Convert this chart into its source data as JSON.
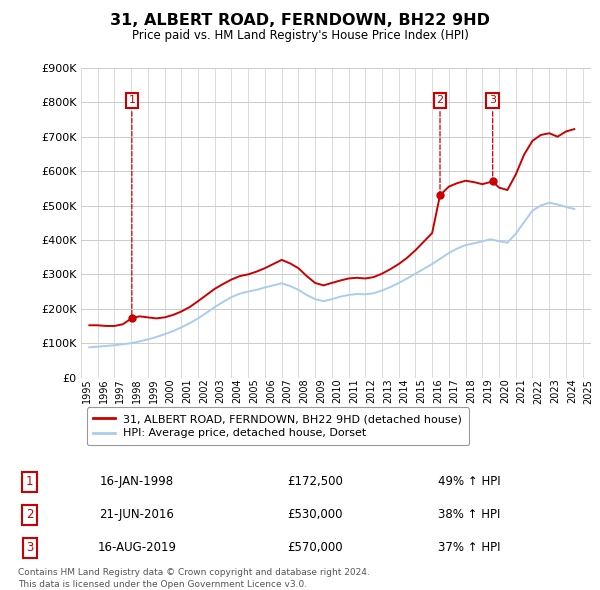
{
  "title": "31, ALBERT ROAD, FERNDOWN, BH22 9HD",
  "subtitle": "Price paid vs. HM Land Registry's House Price Index (HPI)",
  "legend_line1": "31, ALBERT ROAD, FERNDOWN, BH22 9HD (detached house)",
  "legend_line2": "HPI: Average price, detached house, Dorset",
  "footnote1": "Contains HM Land Registry data © Crown copyright and database right 2024.",
  "footnote2": "This data is licensed under the Open Government Licence v3.0.",
  "sale_color": "#cc0000",
  "hpi_color": "#aaccee",
  "background_color": "#ffffff",
  "grid_color": "#cccccc",
  "ylim": [
    0,
    900000
  ],
  "yticks": [
    0,
    100000,
    200000,
    300000,
    400000,
    500000,
    600000,
    700000,
    800000,
    900000
  ],
  "sales": [
    {
      "date_idx": 1998.04,
      "price": 172500,
      "label": "1"
    },
    {
      "date_idx": 2016.47,
      "price": 530000,
      "label": "2"
    },
    {
      "date_idx": 2019.62,
      "price": 570000,
      "label": "3"
    }
  ],
  "table_rows": [
    {
      "num": "1",
      "date": "16-JAN-1998",
      "price": "£172,500",
      "hpi": "49% ↑ HPI"
    },
    {
      "num": "2",
      "date": "21-JUN-2016",
      "price": "£530,000",
      "hpi": "38% ↑ HPI"
    },
    {
      "num": "3",
      "date": "16-AUG-2019",
      "price": "£570,000",
      "hpi": "37% ↑ HPI"
    }
  ],
  "red_line_x": [
    1995.5,
    1996.0,
    1996.5,
    1997.0,
    1997.5,
    1998.04,
    1998.5,
    1999.0,
    1999.5,
    2000.0,
    2000.5,
    2001.0,
    2001.5,
    2002.0,
    2002.5,
    2003.0,
    2003.5,
    2004.0,
    2004.5,
    2005.0,
    2005.5,
    2006.0,
    2006.5,
    2007.0,
    2007.5,
    2008.0,
    2008.5,
    2009.0,
    2009.5,
    2010.0,
    2010.5,
    2011.0,
    2011.5,
    2012.0,
    2012.5,
    2013.0,
    2013.5,
    2014.0,
    2014.5,
    2015.0,
    2015.5,
    2016.0,
    2016.47,
    2017.0,
    2017.5,
    2018.0,
    2018.5,
    2019.0,
    2019.62,
    2020.0,
    2020.5,
    2021.0,
    2021.5,
    2022.0,
    2022.5,
    2023.0,
    2023.5,
    2024.0,
    2024.5
  ],
  "red_line_y": [
    152000,
    152000,
    150000,
    150000,
    155000,
    172500,
    178000,
    175000,
    172000,
    175000,
    182000,
    192000,
    205000,
    222000,
    240000,
    258000,
    272000,
    285000,
    295000,
    300000,
    308000,
    318000,
    330000,
    342000,
    332000,
    318000,
    295000,
    275000,
    268000,
    275000,
    282000,
    288000,
    290000,
    288000,
    292000,
    302000,
    315000,
    330000,
    348000,
    370000,
    395000,
    420000,
    530000,
    555000,
    565000,
    572000,
    568000,
    562000,
    570000,
    552000,
    545000,
    590000,
    648000,
    688000,
    705000,
    710000,
    700000,
    715000,
    722000
  ],
  "blue_line_x": [
    1995.5,
    1996.0,
    1996.5,
    1997.0,
    1997.5,
    1998.0,
    1998.5,
    1999.0,
    1999.5,
    2000.0,
    2000.5,
    2001.0,
    2001.5,
    2002.0,
    2002.5,
    2003.0,
    2003.5,
    2004.0,
    2004.5,
    2005.0,
    2005.5,
    2006.0,
    2006.5,
    2007.0,
    2007.5,
    2008.0,
    2008.5,
    2009.0,
    2009.5,
    2010.0,
    2010.5,
    2011.0,
    2011.5,
    2012.0,
    2012.5,
    2013.0,
    2013.5,
    2014.0,
    2014.5,
    2015.0,
    2015.5,
    2016.0,
    2016.5,
    2017.0,
    2017.5,
    2018.0,
    2018.5,
    2019.0,
    2019.5,
    2020.0,
    2020.5,
    2021.0,
    2021.5,
    2022.0,
    2022.5,
    2023.0,
    2023.5,
    2024.0,
    2024.5
  ],
  "blue_line_y": [
    88000,
    90000,
    92000,
    94000,
    97000,
    100000,
    105000,
    111000,
    118000,
    126000,
    135000,
    146000,
    158000,
    172000,
    188000,
    205000,
    220000,
    234000,
    244000,
    250000,
    255000,
    262000,
    268000,
    274000,
    266000,
    255000,
    240000,
    228000,
    222000,
    228000,
    235000,
    240000,
    243000,
    242000,
    245000,
    253000,
    263000,
    275000,
    288000,
    302000,
    316000,
    330000,
    346000,
    362000,
    375000,
    385000,
    390000,
    396000,
    402000,
    396000,
    392000,
    418000,
    452000,
    485000,
    500000,
    508000,
    503000,
    496000,
    490000
  ]
}
